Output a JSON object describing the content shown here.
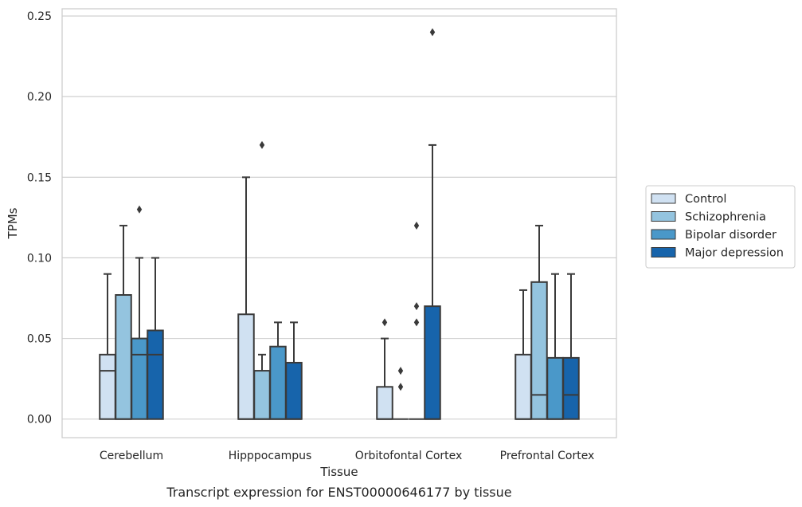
{
  "chart_data": {
    "type": "box",
    "caption": "Transcript expression for ENST00000646177 by tissue",
    "xlabel": "Tissue",
    "ylabel": "TPMs",
    "ylim": [
      -0.0115,
      0.2545
    ],
    "yticks": [
      0.0,
      0.05,
      0.1,
      0.15,
      0.2,
      0.25
    ],
    "ytick_labels": [
      "0.00",
      "0.05",
      "0.10",
      "0.15",
      "0.20",
      "0.25"
    ],
    "grid": "horizontal",
    "legend_position": "right",
    "categories": [
      "Cerebellum",
      "Hipppocampus",
      "Orbitofontal Cortex",
      "Prefrontal Cortex"
    ],
    "series": [
      {
        "name": "Control",
        "color": "#d0e1f2",
        "boxes": [
          {
            "q1": 0.0,
            "median": 0.03,
            "q3": 0.04,
            "whisker_low": 0.0,
            "whisker_high": 0.09,
            "outliers": []
          },
          {
            "q1": 0.0,
            "median": 0.0,
            "q3": 0.065,
            "whisker_low": 0.0,
            "whisker_high": 0.15,
            "outliers": []
          },
          {
            "q1": 0.0,
            "median": 0.0,
            "q3": 0.02,
            "whisker_low": 0.0,
            "whisker_high": 0.05,
            "outliers": [
              0.06
            ]
          },
          {
            "q1": 0.0,
            "median": 0.0,
            "q3": 0.04,
            "whisker_low": 0.0,
            "whisker_high": 0.08,
            "outliers": []
          }
        ]
      },
      {
        "name": "Schizophrenia",
        "color": "#94c4df",
        "boxes": [
          {
            "q1": 0.0,
            "median": 0.0,
            "q3": 0.077,
            "whisker_low": 0.0,
            "whisker_high": 0.12,
            "outliers": []
          },
          {
            "q1": 0.0,
            "median": 0.0,
            "q3": 0.03,
            "whisker_low": 0.0,
            "whisker_high": 0.04,
            "outliers": [
              0.17
            ]
          },
          {
            "q1": 0.0,
            "median": 0.0,
            "q3": 0.0,
            "whisker_low": 0.0,
            "whisker_high": 0.0,
            "outliers": [
              0.02,
              0.03
            ]
          },
          {
            "q1": 0.0,
            "median": 0.015,
            "q3": 0.085,
            "whisker_low": 0.0,
            "whisker_high": 0.12,
            "outliers": []
          }
        ]
      },
      {
        "name": "Bipolar disorder",
        "color": "#4a98c9",
        "boxes": [
          {
            "q1": 0.0,
            "median": 0.04,
            "q3": 0.05,
            "whisker_low": 0.0,
            "whisker_high": 0.1,
            "outliers": [
              0.13
            ]
          },
          {
            "q1": 0.0,
            "median": 0.0,
            "q3": 0.045,
            "whisker_low": 0.0,
            "whisker_high": 0.06,
            "outliers": []
          },
          {
            "q1": 0.0,
            "median": 0.0,
            "q3": 0.0,
            "whisker_low": 0.0,
            "whisker_high": 0.0,
            "outliers": [
              0.06,
              0.07,
              0.12
            ]
          },
          {
            "q1": 0.0,
            "median": 0.0,
            "q3": 0.038,
            "whisker_low": 0.0,
            "whisker_high": 0.09,
            "outliers": []
          }
        ]
      },
      {
        "name": "Major depression",
        "color": "#1764ab",
        "boxes": [
          {
            "q1": 0.0,
            "median": 0.04,
            "q3": 0.055,
            "whisker_low": 0.0,
            "whisker_high": 0.1,
            "outliers": []
          },
          {
            "q1": 0.0,
            "median": 0.0,
            "q3": 0.035,
            "whisker_low": 0.0,
            "whisker_high": 0.06,
            "outliers": []
          },
          {
            "q1": 0.0,
            "median": 0.0,
            "q3": 0.07,
            "whisker_low": 0.0,
            "whisker_high": 0.17,
            "outliers": [
              0.24
            ]
          },
          {
            "q1": 0.0,
            "median": 0.015,
            "q3": 0.038,
            "whisker_low": 0.0,
            "whisker_high": 0.09,
            "outliers": []
          }
        ]
      }
    ]
  }
}
